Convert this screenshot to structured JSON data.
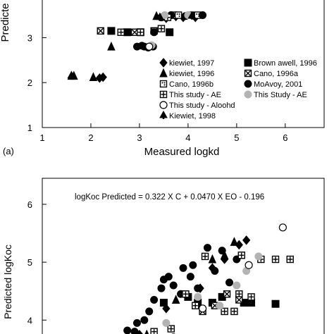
{
  "chart_data": [
    {
      "type": "scatter",
      "panel_label": "(a)",
      "xlabel": "Measured logkd",
      "ylabel": "Predicte",
      "xlim": [
        1,
        6.8
      ],
      "ylim": [
        1,
        3.9
      ],
      "xticks": [
        1,
        2,
        3,
        4,
        5,
        6
      ],
      "yticks": [
        1,
        2,
        3
      ],
      "legend_position": "bottom-right",
      "series": [
        {
          "name": "kiewiet, 1997",
          "marker": "diamond",
          "color": "#000000",
          "fill": "#000000",
          "points": [
            [
              2.18,
              2.1
            ],
            [
              2.25,
              2.12
            ],
            [
              3.55,
              3.43
            ],
            [
              3.75,
              3.47
            ],
            [
              3.9,
              3.45
            ],
            [
              4.15,
              3.45
            ]
          ]
        },
        {
          "name": "Brown awell, 1996",
          "marker": "square",
          "color": "#000000",
          "fill": "#000000",
          "points": [
            [
              2.42,
              3.15
            ],
            [
              2.75,
              3.12
            ],
            [
              3.02,
              3.12
            ],
            [
              3.62,
              3.12
            ]
          ]
        },
        {
          "name": "kiewiet, 1996",
          "marker": "triangle",
          "color": "#000000",
          "fill": "#000000",
          "points": [
            [
              1.6,
              2.15
            ],
            [
              1.65,
              2.15
            ],
            [
              2.05,
              2.12
            ],
            [
              2.42,
              2.8
            ],
            [
              3.35,
              3.48
            ],
            [
              3.52,
              3.48
            ]
          ]
        },
        {
          "name": "Cano, 1996a",
          "marker": "crosssquare",
          "color": "#000000",
          "fill": "#ffffff",
          "points": [
            [
              2.2,
              3.15
            ],
            [
              2.9,
              3.12
            ],
            [
              3.3,
              3.15
            ],
            [
              3.7,
              3.5
            ],
            [
              4.05,
              3.5
            ]
          ]
        },
        {
          "name": "Cano, 1996b",
          "marker": "dotsquare",
          "color": "#000000",
          "fill": "#ffffff",
          "points": [
            [
              3.8,
              3.5
            ],
            [
              4.2,
              3.5
            ]
          ]
        },
        {
          "name": "MoAvoy, 2001",
          "marker": "circle",
          "color": "#000000",
          "fill": "#000000",
          "points": [
            [
              2.95,
              2.8
            ],
            [
              3.05,
              2.82
            ],
            [
              3.1,
              2.8
            ],
            [
              3.18,
              2.78
            ],
            [
              3.28,
              2.8
            ],
            [
              3.3,
              3.12
            ],
            [
              3.45,
              3.45
            ],
            [
              3.65,
              3.5
            ],
            [
              3.95,
              3.48
            ],
            [
              4.3,
              3.5
            ]
          ]
        },
        {
          "name": "This study - AE",
          "marker": "plussquare",
          "color": "#000000",
          "fill": "#ffffff",
          "points": [
            [
              2.62,
              3.12
            ],
            [
              3.02,
              3.12
            ],
            [
              3.45,
              3.2
            ],
            [
              3.58,
              3.45
            ]
          ]
        },
        {
          "name": "This Study - AE",
          "marker": "circle",
          "color": "#b3b3b3",
          "fill": "#b3b3b3",
          "points": [
            [
              3.25,
              2.83
            ],
            [
              3.52,
              3.5
            ],
            [
              4.0,
              3.5
            ]
          ]
        },
        {
          "name": "This study - Aloohd",
          "marker": "opencircle",
          "color": "#000000",
          "fill": "#ffffff",
          "points": [
            [
              3.2,
              2.8
            ]
          ]
        },
        {
          "name": "Kiewiet, 1998",
          "marker": "spade",
          "color": "#000000",
          "fill": "#000000",
          "points": [
            [
              1.6,
              2.15
            ],
            [
              3.42,
              3.45
            ],
            [
              4.08,
              3.48
            ]
          ]
        }
      ]
    },
    {
      "type": "scatter",
      "panel_label": "",
      "equation": "logKoc Predicted = 0.322 X C + 0.0470 X EO - 0.196",
      "xlabel": "",
      "ylabel": "Predicted logKoc",
      "xlim": [
        1,
        6.8
      ],
      "ylim": [
        3.65,
        6.45
      ],
      "yticks": [
        4,
        5,
        6
      ],
      "series": [
        {
          "name": "Brown awell, 1996",
          "marker": "square",
          "color": "#000000",
          "fill": "#000000",
          "points": [
            [
              3.5,
              4.3
            ],
            [
              4.0,
              4.4
            ],
            [
              4.2,
              4.3
            ],
            [
              4.5,
              4.3
            ],
            [
              4.7,
              4.4
            ],
            [
              5.15,
              4.3
            ],
            [
              5.3,
              4.3
            ],
            [
              5.8,
              4.28
            ]
          ]
        },
        {
          "name": "MoAvoy, 2001",
          "marker": "circle",
          "color": "#000000",
          "fill": "#000000",
          "points": [
            [
              2.75,
              3.82
            ],
            [
              2.9,
              3.8
            ],
            [
              2.95,
              3.95
            ],
            [
              3.1,
              4.0
            ],
            [
              3.2,
              4.15
            ],
            [
              3.3,
              4.35
            ],
            [
              3.45,
              4.55
            ],
            [
              3.5,
              4.7
            ],
            [
              3.6,
              4.75
            ],
            [
              3.7,
              4.6
            ],
            [
              3.85,
              4.45
            ],
            [
              3.9,
              4.9
            ],
            [
              4.05,
              4.75
            ],
            [
              4.1,
              4.95
            ],
            [
              4.2,
              4.55
            ],
            [
              4.4,
              5.25
            ],
            [
              4.55,
              4.85
            ],
            [
              4.7,
              5.2
            ],
            [
              4.85,
              4.65
            ],
            [
              5.0,
              5.05
            ]
          ]
        },
        {
          "name": "kiewiet, 1997",
          "marker": "diamond",
          "color": "#000000",
          "fill": "#000000",
          "points": [
            [
              3.0,
              3.75
            ],
            [
              3.55,
              4.2
            ],
            [
              4.25,
              4.55
            ],
            [
              4.5,
              4.9
            ],
            [
              4.75,
              5.05
            ],
            [
              5.05,
              5.3
            ],
            [
              5.2,
              5.38
            ]
          ]
        },
        {
          "name": "kiewiet, 1996",
          "marker": "triangle",
          "color": "#000000",
          "fill": "#000000",
          "points": [
            [
              3.15,
              3.75
            ],
            [
              3.75,
              4.35
            ],
            [
              4.5,
              5.05
            ],
            [
              4.75,
              5.12
            ],
            [
              4.95,
              5.35
            ]
          ]
        },
        {
          "name": "This study - AE",
          "marker": "plussquare",
          "color": "#000000",
          "fill": "#ffffff",
          "points": [
            [
              3.3,
              3.8
            ],
            [
              3.65,
              3.85
            ],
            [
              3.95,
              4.45
            ],
            [
              4.15,
              4.25
            ],
            [
              4.35,
              5.1
            ],
            [
              4.75,
              4.15
            ],
            [
              4.95,
              4.15
            ],
            [
              5.05,
              4.45
            ],
            [
              5.3,
              4.4
            ],
            [
              5.5,
              5.05
            ],
            [
              5.8,
              5.05
            ],
            [
              6.1,
              5.05
            ],
            [
              5.1,
              5.12
            ]
          ]
        },
        {
          "name": "Cano, 1996a",
          "marker": "crosssquare",
          "color": "#000000",
          "fill": "#ffffff",
          "points": [
            [
              4.3,
              4.15
            ],
            [
              4.55,
              4.25
            ],
            [
              4.8,
              4.45
            ],
            [
              5.05,
              4.35
            ]
          ]
        },
        {
          "name": "This Study - AE",
          "marker": "circle",
          "color": "#b3b3b3",
          "fill": "#b3b3b3",
          "points": [
            [
              3.55,
              3.95
            ],
            [
              4.2,
              4.4
            ],
            [
              4.65,
              4.25
            ],
            [
              5.0,
              4.6
            ],
            [
              5.2,
              4.85
            ],
            [
              5.45,
              5.1
            ]
          ]
        },
        {
          "name": "This study - Aloohd",
          "marker": "opencircle",
          "color": "#000000",
          "fill": "#ffffff",
          "points": [
            [
              3.7,
              3.7
            ],
            [
              4.3,
              4.2
            ],
            [
              5.25,
              4.95
            ],
            [
              5.95,
              5.6
            ]
          ]
        }
      ]
    }
  ]
}
